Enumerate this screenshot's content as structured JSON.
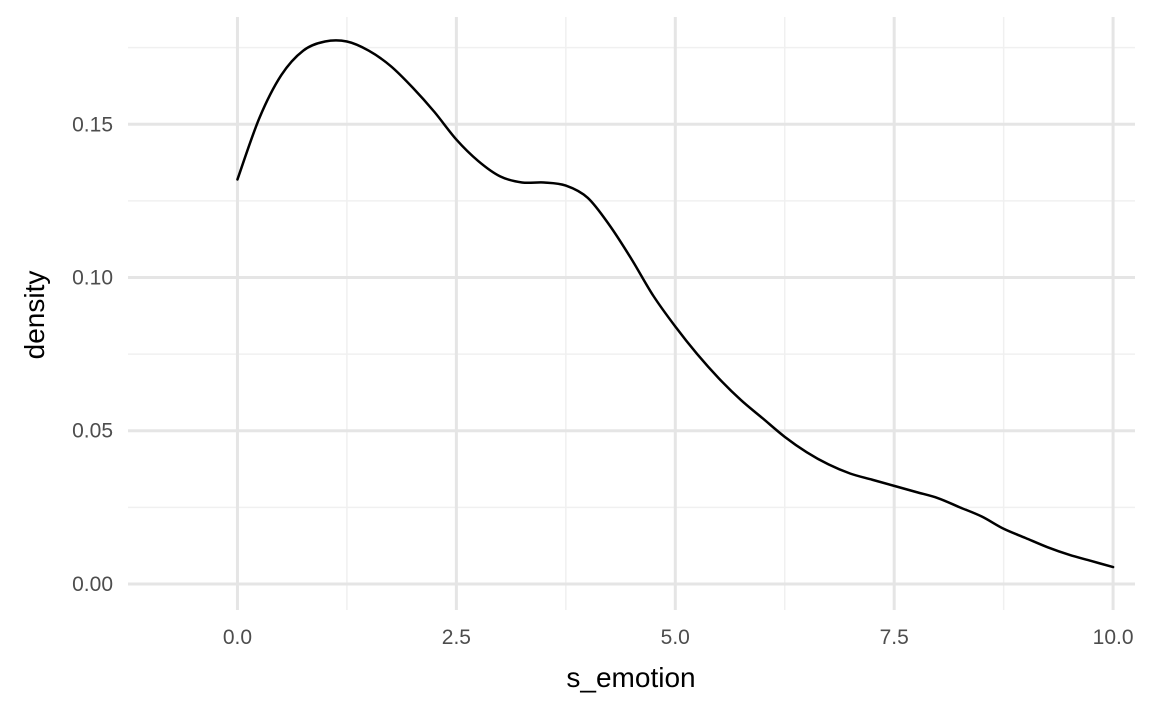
{
  "chart_data": {
    "type": "line",
    "title": "",
    "xlabel": "s_emotion",
    "ylabel": "density",
    "xlim": [
      -1.25,
      10.25
    ],
    "ylim": [
      -0.0085,
      0.185
    ],
    "grid": true,
    "legend": "none",
    "x_ticks": [
      0.0,
      2.5,
      5.0,
      7.5,
      10.0
    ],
    "x_tick_labels": [
      "0.0",
      "2.5",
      "5.0",
      "7.5",
      "10.0"
    ],
    "x_minor_ticks": [
      1.25,
      3.75,
      6.25,
      8.75
    ],
    "y_ticks": [
      0.0,
      0.05,
      0.1,
      0.15
    ],
    "y_tick_labels": [
      "0.00",
      "0.05",
      "0.10",
      "0.15"
    ],
    "y_minor_ticks": [
      0.025,
      0.075,
      0.125,
      0.175
    ],
    "colors": {
      "line": "#000000",
      "grid_major": "#e5e5e5",
      "grid_minor": "#f0f0f0"
    },
    "series": [
      {
        "x": [
          0.0,
          0.25,
          0.5,
          0.75,
          1.0,
          1.25,
          1.5,
          1.75,
          2.0,
          2.25,
          2.5,
          2.75,
          3.0,
          3.25,
          3.5,
          3.75,
          4.0,
          4.25,
          4.5,
          4.75,
          5.0,
          5.25,
          5.5,
          5.75,
          6.0,
          6.25,
          6.5,
          6.75,
          7.0,
          7.25,
          7.5,
          7.75,
          8.0,
          8.25,
          8.5,
          8.75,
          9.0,
          9.25,
          9.5,
          9.75,
          10.0
        ],
        "y": [
          0.132,
          0.152,
          0.166,
          0.174,
          0.177,
          0.177,
          0.174,
          0.169,
          0.162,
          0.154,
          0.145,
          0.138,
          0.133,
          0.131,
          0.131,
          0.13,
          0.126,
          0.117,
          0.106,
          0.094,
          0.084,
          0.075,
          0.067,
          0.06,
          0.054,
          0.048,
          0.043,
          0.039,
          0.036,
          0.034,
          0.032,
          0.03,
          0.028,
          0.025,
          0.022,
          0.018,
          0.015,
          0.012,
          0.0095,
          0.0075,
          0.0055
        ]
      }
    ]
  }
}
